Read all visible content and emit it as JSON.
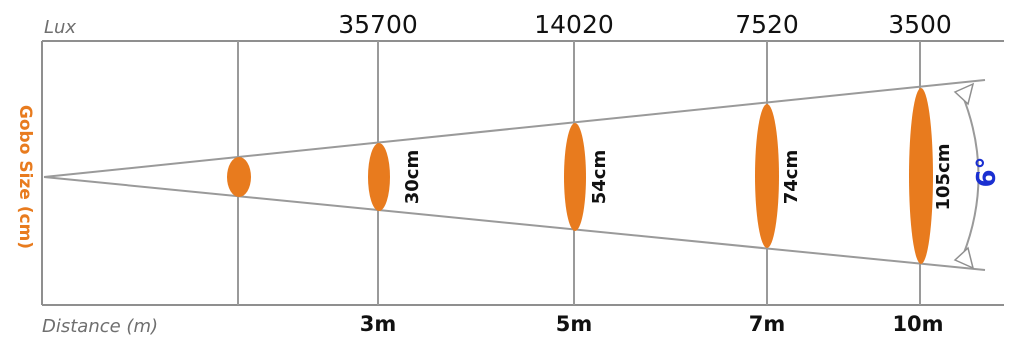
{
  "labels": {
    "lux_heading": "Lux",
    "distance_heading": "Distance (m)",
    "gobo_size_heading": "Gobo Size (cm)",
    "beam_angle": "6°"
  },
  "markers": [
    {
      "distance": "",
      "lux": "",
      "size": ""
    },
    {
      "distance": "3m",
      "lux": "35700",
      "size": "30cm"
    },
    {
      "distance": "5m",
      "lux": "14020",
      "size": "54cm"
    },
    {
      "distance": "7m",
      "lux": "7520",
      "size": "74cm"
    },
    {
      "distance": "10m",
      "lux": "3500",
      "size": "105cm"
    }
  ],
  "colors": {
    "spot": "#e87b1e",
    "gobo_heading": "#e87b1e",
    "angle": "#1a2fd1",
    "lines": "#9a9a9a",
    "frame": "#8f8f8f"
  }
}
